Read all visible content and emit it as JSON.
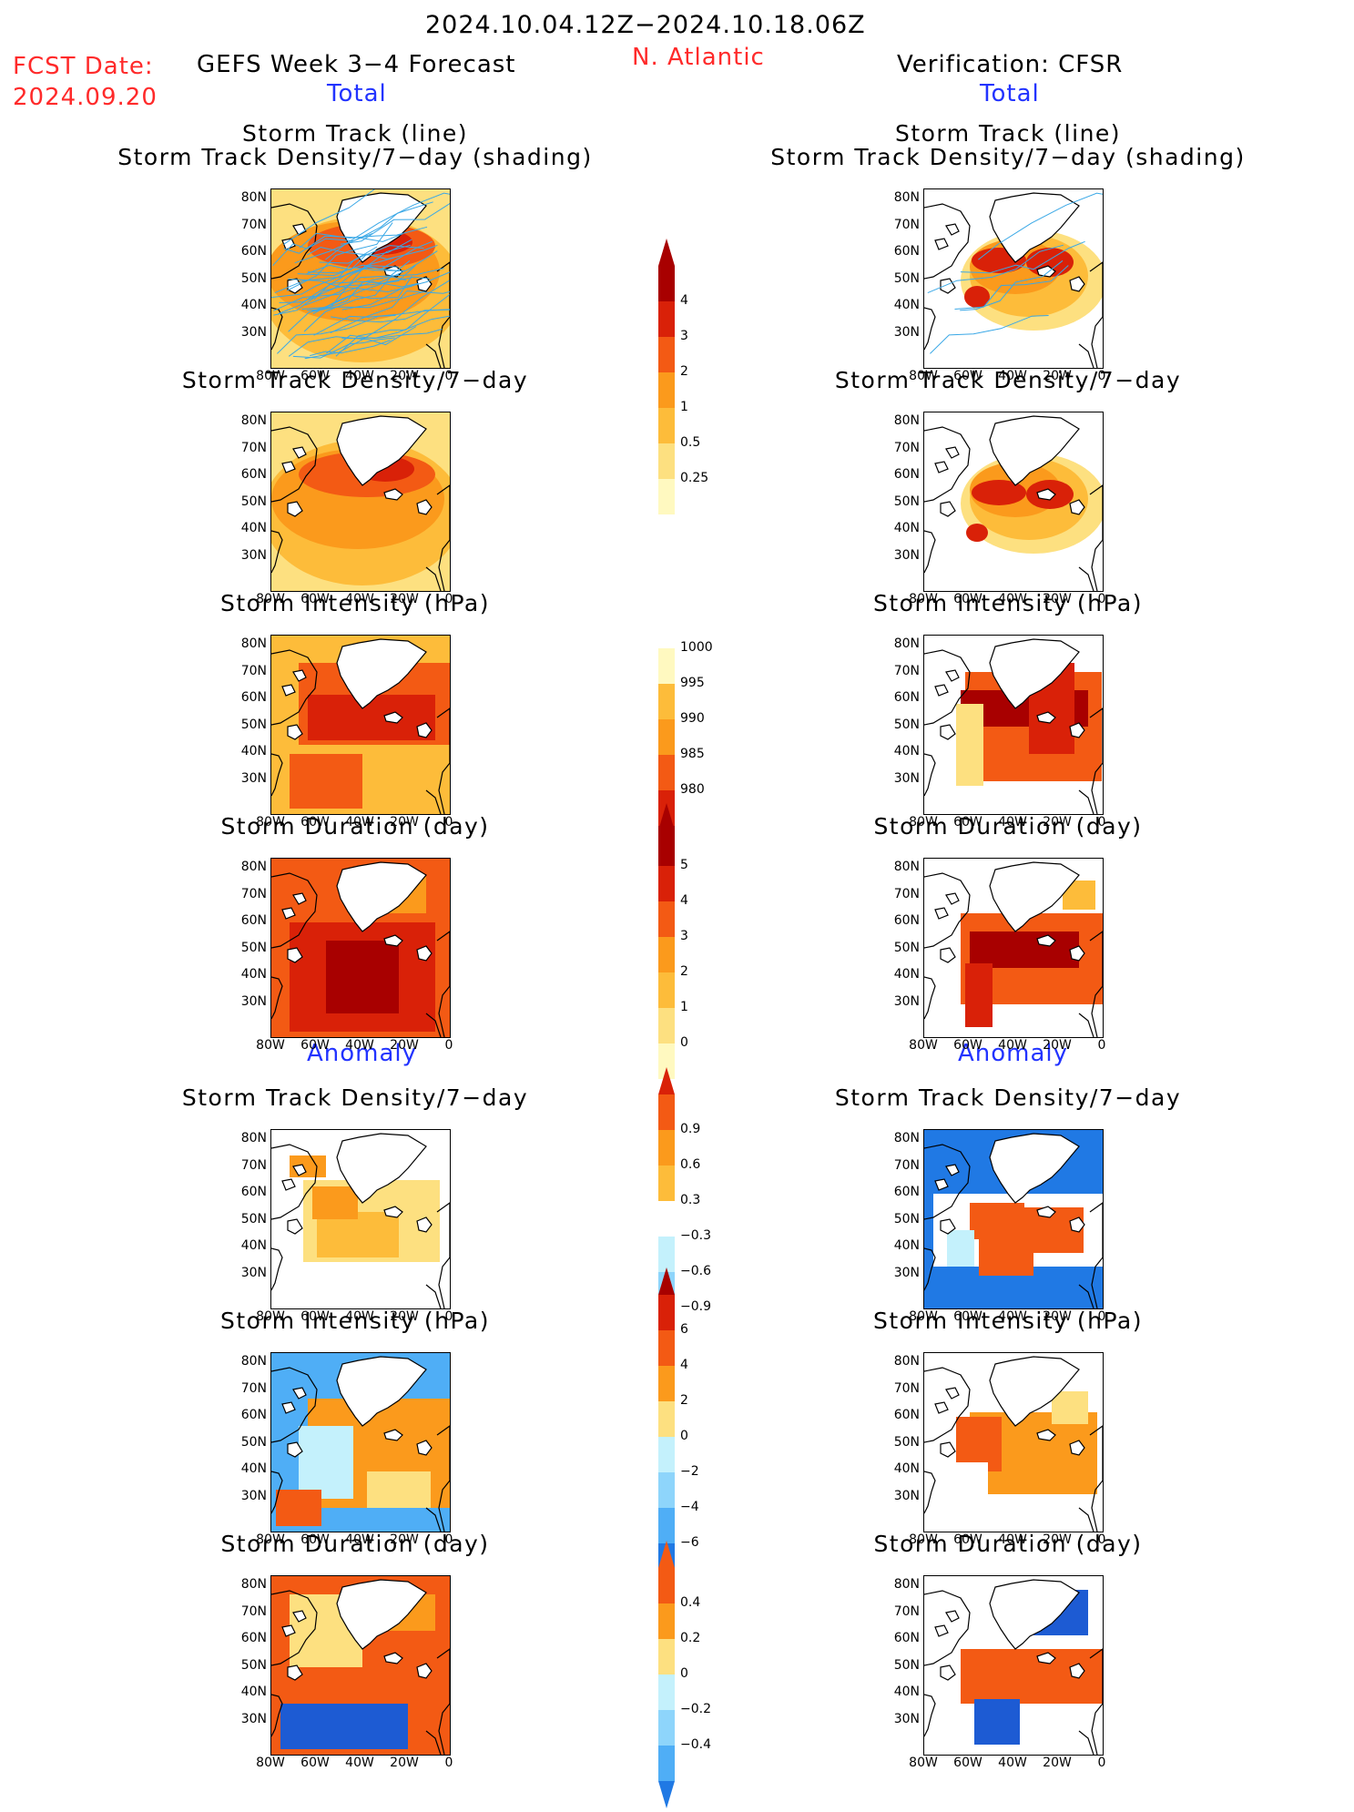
{
  "header": {
    "date_range": "2024.10.04.12Z−2024.10.18.06Z",
    "fcst_label": "FCST Date:",
    "fcst_date": "2024.09.20",
    "forecast_title": "GEFS Week 3−4 Forecast",
    "region": "N. Atlantic",
    "verification": "Verification: CFSR"
  },
  "sections": {
    "total": "Total",
    "anomaly": "Anomaly"
  },
  "axes": {
    "lat_ticks": [
      "80N",
      "70N",
      "60N",
      "50N",
      "40N",
      "30N"
    ],
    "lon_ticks": [
      "80W",
      "60W",
      "40W",
      "20W",
      "0"
    ]
  },
  "colors": {
    "warm": [
      "#fff9c0",
      "#fde080",
      "#fdbc3a",
      "#fb9a1c",
      "#f35a14",
      "#d92108",
      "#a80000"
    ],
    "cool": [
      "#c4f1fc",
      "#8ed5fb",
      "#4faef6",
      "#2079e4",
      "#1d5bd3"
    ],
    "track_line": "#3aa8e6"
  },
  "rows": [
    {
      "id": "track",
      "title": "Storm Track (line)",
      "subtitle": "Storm Track Density/7−day (shading)"
    },
    {
      "id": "density",
      "title": "Storm Track Density/7−day"
    },
    {
      "id": "intensity",
      "title": "Storm Intensity (hPa)"
    },
    {
      "id": "duration",
      "title": "Storm Duration (day)"
    },
    {
      "id": "density_anom",
      "title": "Storm Track Density/7−day"
    },
    {
      "id": "intensity_anom",
      "title": "Storm Intensity (hPa)"
    },
    {
      "id": "duration_anom",
      "title": "Storm Duration (day)"
    }
  ],
  "colorbars": [
    {
      "id": "cb-density",
      "labels": [
        "4",
        "3",
        "2",
        "1",
        "0.5",
        "0.25"
      ]
    },
    {
      "id": "cb-intensity",
      "labels": [
        "1000",
        "995",
        "990",
        "985",
        "980"
      ]
    },
    {
      "id": "cb-duration",
      "labels": [
        "5",
        "4",
        "3",
        "2",
        "1",
        "0"
      ]
    },
    {
      "id": "cb-density-anom",
      "labels": [
        "0.9",
        "0.6",
        "0.3",
        "−0.3",
        "−0.6",
        "−0.9"
      ]
    },
    {
      "id": "cb-intensity-anom",
      "labels": [
        "6",
        "4",
        "2",
        "0",
        "−2",
        "−4",
        "−6"
      ]
    },
    {
      "id": "cb-duration-anom",
      "labels": [
        "0.4",
        "0.2",
        "0",
        "−0.2",
        "−0.4"
      ]
    }
  ]
}
